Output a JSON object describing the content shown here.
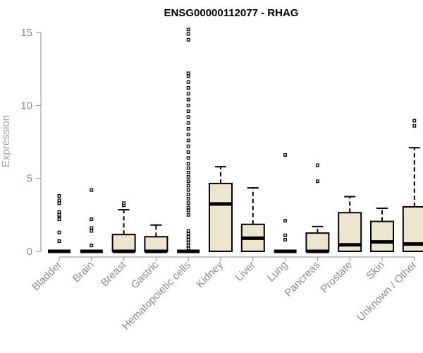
{
  "chart_data": {
    "type": "box",
    "title": "ENSG00000112077 - RHAG",
    "ylabel": "Expression",
    "xlabel": "",
    "ylim": [
      -0.4,
      15.3
    ],
    "yticks": [
      0,
      5,
      10,
      15
    ],
    "box_fill": "#ede6cf",
    "box_stroke": "#000000",
    "categories": [
      "Bladder",
      "Brain",
      "Breast",
      "Gastric",
      "Hematopoietic cells",
      "Kidney",
      "Liver",
      "Lung",
      "Pancreas",
      "Prostate",
      "Skin",
      "Unknown / Other"
    ],
    "boxes": [
      {
        "category": "Bladder",
        "q1": 0,
        "median": 0,
        "q3": 0,
        "whisker_low": 0,
        "whisker_high": 0,
        "outliers": [
          0.7,
          1.3,
          2.2,
          2.4,
          2.5,
          2.7,
          3.3,
          3.5,
          3.8
        ]
      },
      {
        "category": "Brain",
        "q1": 0,
        "median": 0,
        "q3": 0,
        "whisker_low": 0,
        "whisker_high": 0,
        "outliers": [
          0.4,
          1.4,
          1.6,
          2.2,
          4.2
        ]
      },
      {
        "category": "Breast",
        "q1": 0,
        "median": 0,
        "q3": 1.15,
        "whisker_low": 0,
        "whisker_high": 2.85,
        "outliers": [
          3.15,
          3.3
        ]
      },
      {
        "category": "Gastric",
        "q1": 0,
        "median": 0,
        "q3": 1.0,
        "whisker_low": 0,
        "whisker_high": 1.8,
        "outliers": []
      },
      {
        "category": "Hematopoietic cells",
        "q1": 0,
        "median": 0,
        "q3": 0,
        "whisker_low": 0,
        "whisker_high": 0,
        "outliers": [
          0.2,
          0.4,
          0.6,
          0.8,
          1.0,
          1.2,
          1.4,
          2.5,
          2.8,
          3.0,
          3.3,
          3.6,
          3.9,
          4.2,
          4.5,
          4.8,
          5.1,
          5.4,
          5.7,
          6.0,
          6.4,
          6.8,
          7.2,
          7.6,
          8.0,
          8.4,
          8.8,
          9.2,
          9.6,
          10.0,
          10.4,
          10.8,
          11.2,
          11.6,
          12.0,
          12.2,
          14.5,
          14.9,
          15.2
        ]
      },
      {
        "category": "Kidney",
        "q1": 0,
        "median": 3.25,
        "q3": 4.65,
        "whisker_low": 0,
        "whisker_high": 5.8,
        "outliers": []
      },
      {
        "category": "Liver",
        "q1": 0,
        "median": 0.9,
        "q3": 1.85,
        "whisker_low": 0,
        "whisker_high": 4.35,
        "outliers": []
      },
      {
        "category": "Lung",
        "q1": 0,
        "median": 0,
        "q3": 0,
        "whisker_low": 0,
        "whisker_high": 0,
        "outliers": [
          0.8,
          1.1,
          2.1,
          6.6
        ]
      },
      {
        "category": "Pancreas",
        "q1": 0,
        "median": 0,
        "q3": 1.25,
        "whisker_low": 0,
        "whisker_high": 1.7,
        "outliers": [
          4.8,
          5.9
        ]
      },
      {
        "category": "Prostate",
        "q1": 0,
        "median": 0.45,
        "q3": 2.65,
        "whisker_low": 0,
        "whisker_high": 3.75,
        "outliers": []
      },
      {
        "category": "Skin",
        "q1": 0,
        "median": 0.65,
        "q3": 2.05,
        "whisker_low": 0,
        "whisker_high": 2.95,
        "outliers": []
      },
      {
        "category": "Unknown / Other",
        "q1": 0,
        "median": 0.5,
        "q3": 3.05,
        "whisker_low": 0,
        "whisker_high": 7.1,
        "outliers": [
          8.6,
          8.95
        ]
      }
    ]
  }
}
